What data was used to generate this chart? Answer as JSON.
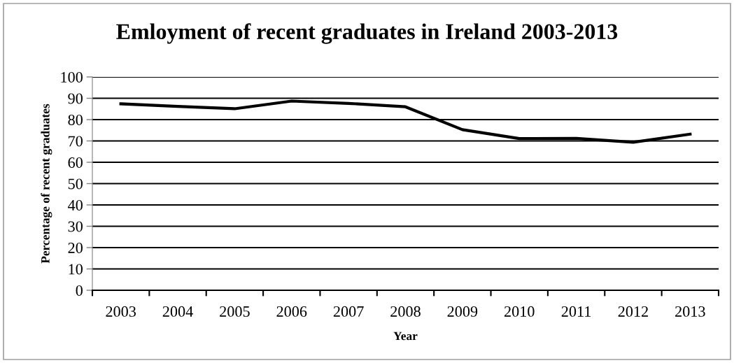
{
  "chart_data": {
    "type": "line",
    "title": "Emloyment of recent graduates in Ireland 2003-2013",
    "xlabel": "Year",
    "ylabel": "Percentage of recent graduates",
    "categories": [
      "2003",
      "2004",
      "2005",
      "2006",
      "2007",
      "2008",
      "2009",
      "2010",
      "2011",
      "2012",
      "2013"
    ],
    "values": [
      87.4,
      86.2,
      85.1,
      88.7,
      87.6,
      86.0,
      75.3,
      71.1,
      71.2,
      69.4,
      73.2
    ],
    "color": "#000000",
    "line_style": "solid",
    "ylim": [
      0,
      100
    ],
    "yticks": [
      0,
      10,
      20,
      30,
      40,
      50,
      60,
      70,
      80,
      90,
      100
    ],
    "grid": "y"
  }
}
